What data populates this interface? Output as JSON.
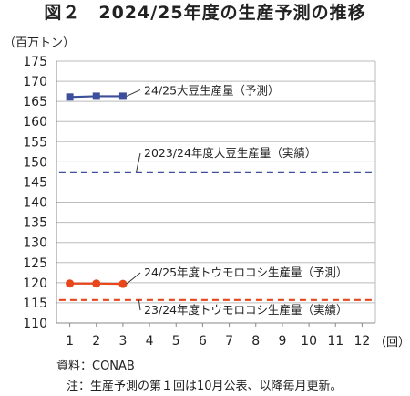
{
  "title": "図２　2024/25年度の生産予測の推移",
  "unit_label": "（百万トン）",
  "x_unit_label": "（回）",
  "source": "資料：CONAB",
  "note": "注：生産予測の第１回は10月公表、以降毎月更新。",
  "colors": {
    "soy": "#3d4f9c",
    "corn": "#e8461b",
    "axis": "#888888",
    "grid": "#bbbbbb"
  },
  "chart_data": {
    "type": "line",
    "x": [
      1,
      2,
      3,
      4,
      5,
      6,
      7,
      8,
      9,
      10,
      11,
      12
    ],
    "ylim": [
      110,
      175
    ],
    "yticks": [
      110,
      115,
      120,
      125,
      130,
      135,
      140,
      145,
      150,
      155,
      160,
      165,
      170,
      175
    ],
    "grid": "horizontal",
    "series": [
      {
        "name": "24/25大豆生産量（予測）",
        "style": "solid",
        "marker": "square",
        "color": "#3d4f9c",
        "x": [
          1,
          2,
          3
        ],
        "values": [
          166.1,
          166.3,
          166.3
        ]
      },
      {
        "name": "2023/24年度大豆生産量（実績）",
        "style": "dashed",
        "color": "#3d4f9c",
        "x": [
          0.6,
          12.4
        ],
        "values": [
          147.4,
          147.4
        ]
      },
      {
        "name": "24/25年度トウモロコシ生産量（予測）",
        "style": "solid",
        "marker": "circle",
        "color": "#e8461b",
        "x": [
          1,
          2,
          3
        ],
        "values": [
          119.8,
          119.8,
          119.7
        ]
      },
      {
        "name": "23/24年度トウモロコシ生産量（実績）",
        "style": "dashed",
        "color": "#e8461b",
        "x": [
          0.6,
          12.4
        ],
        "values": [
          115.7,
          115.7
        ]
      }
    ]
  }
}
